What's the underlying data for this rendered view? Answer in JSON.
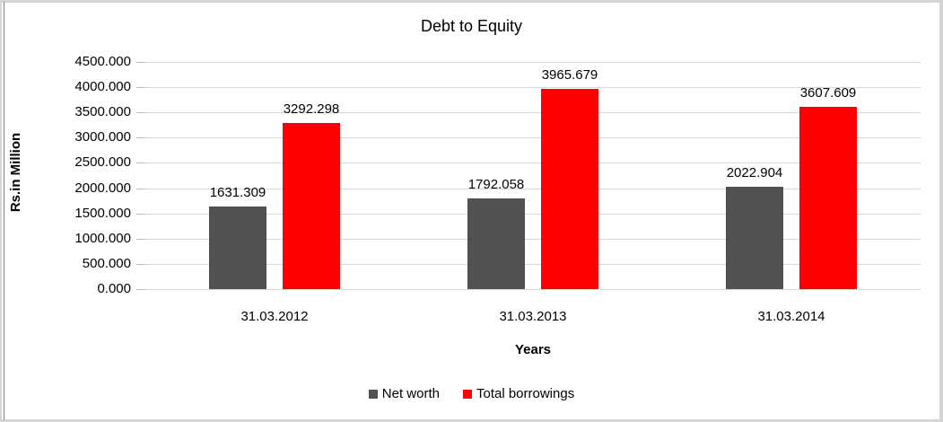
{
  "chart_data": {
    "type": "bar",
    "title": "Debt to Equity",
    "xlabel": "Years",
    "ylabel": "Rs.in Million",
    "categories": [
      "31.03.2012",
      "31.03.2013",
      "31.03.2014"
    ],
    "series": [
      {
        "name": "Net worth",
        "color": "#515151",
        "values": [
          1631.309,
          1792.058,
          2022.904
        ],
        "labels": [
          "1631.309",
          "1792.058",
          "2022.904"
        ]
      },
      {
        "name": "Total borrowings",
        "color": "#ff0000",
        "values": [
          3292.298,
          3965.679,
          3607.609
        ],
        "labels": [
          "3292.298",
          "3965.679",
          "3607.609"
        ]
      }
    ],
    "ylim": [
      0,
      4500
    ],
    "ytick_step": 500,
    "ytick_labels": [
      "0.000",
      "500.000",
      "1000.000",
      "1500.000",
      "2000.000",
      "2500.000",
      "3000.000",
      "3500.000",
      "4000.000",
      "4500.000"
    ],
    "grid": true,
    "legend_position": "bottom",
    "colors": {
      "gridline": "#d9d9d9",
      "axis_tick": "#bfbfbf",
      "text": "#000000",
      "frame": "#d5d5d5",
      "frame_accent": "#808080",
      "background": "#ffffff"
    }
  }
}
